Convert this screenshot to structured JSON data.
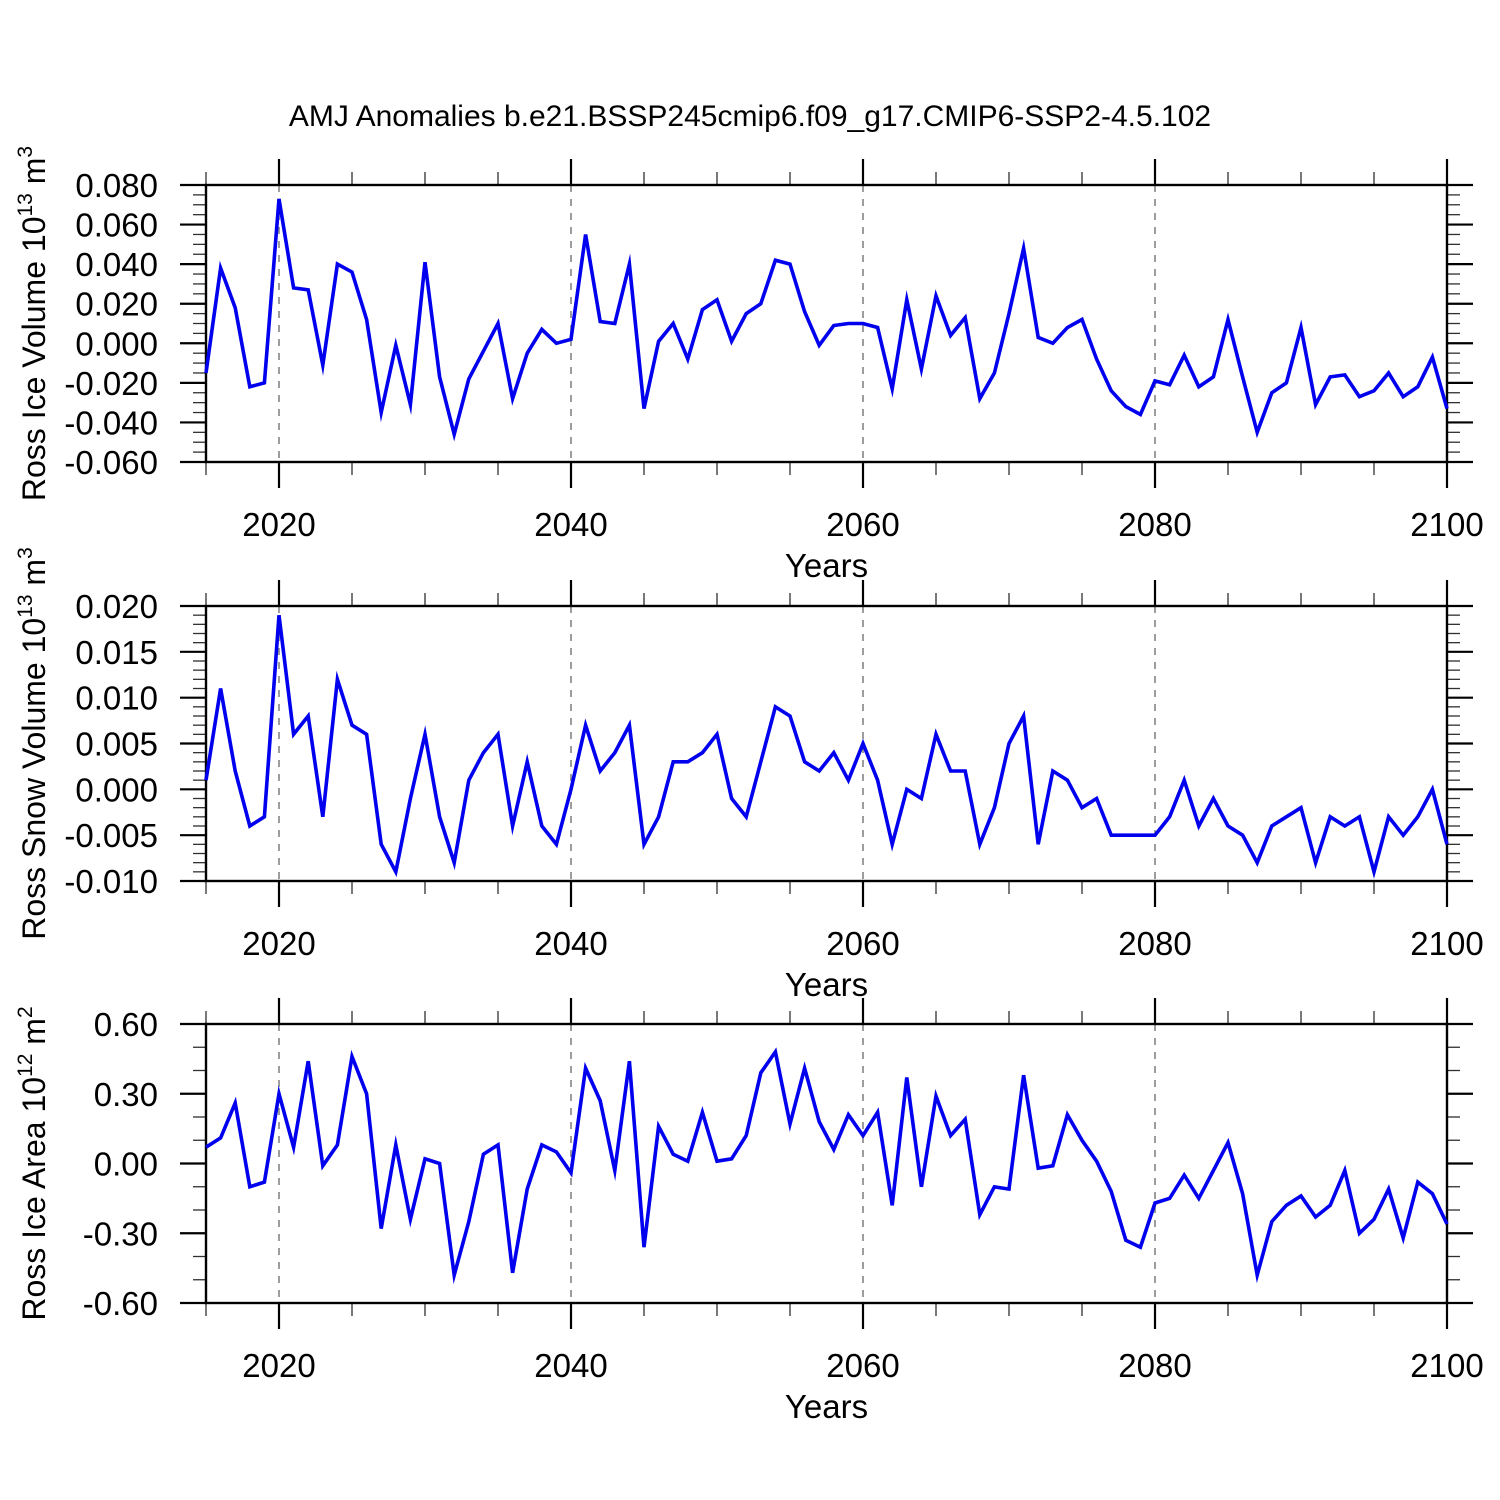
{
  "title": "AMJ Anomalies b.e21.BSSP245cmip6.f09_g17.CMIP6-SSP2-4.5.102",
  "colors": {
    "line": "#0000EE",
    "grid": "#7d7d7d",
    "axis": "#000000"
  },
  "chart_data": {
    "type": "line",
    "title": "AMJ Anomalies b.e21.BSSP245cmip6.f09_g17.CMIP6-SSP2-4.5.102",
    "x_range": [
      2015,
      2100
    ],
    "x_ticks": [
      2020,
      2040,
      2060,
      2080,
      2100
    ],
    "x_tick_labels": [
      "2020",
      "2040",
      "2060",
      "2080",
      "2100"
    ],
    "x_minor_step": 5,
    "grid_x": [
      2020,
      2040,
      2060,
      2080
    ],
    "xlabel": "Years",
    "legend": "none",
    "grid": "vertical-dashed",
    "x": [
      2015,
      2016,
      2017,
      2018,
      2019,
      2020,
      2021,
      2022,
      2023,
      2024,
      2025,
      2026,
      2027,
      2028,
      2029,
      2030,
      2031,
      2032,
      2033,
      2034,
      2035,
      2036,
      2037,
      2038,
      2039,
      2040,
      2041,
      2042,
      2043,
      2044,
      2045,
      2046,
      2047,
      2048,
      2049,
      2050,
      2051,
      2052,
      2053,
      2054,
      2055,
      2056,
      2057,
      2058,
      2059,
      2060,
      2061,
      2062,
      2063,
      2064,
      2065,
      2066,
      2067,
      2068,
      2069,
      2070,
      2071,
      2072,
      2073,
      2074,
      2075,
      2076,
      2077,
      2078,
      2079,
      2080,
      2081,
      2082,
      2083,
      2084,
      2085,
      2086,
      2087,
      2088,
      2089,
      2090,
      2091,
      2092,
      2093,
      2094,
      2095,
      2096,
      2097,
      2098,
      2099,
      2100
    ],
    "panels": [
      {
        "id": "ross-ice-volume",
        "ylabel_text": "Ross Ice Volume 10^13 m^3",
        "ylabel_parts": [
          {
            "t": "Ross Ice Volume 10"
          },
          {
            "t": "13",
            "sup": true
          },
          {
            "t": " m"
          },
          {
            "t": "3",
            "sup": true
          }
        ],
        "ylim": [
          -0.06,
          0.08
        ],
        "ytick_labels": [
          "0.080",
          "0.060",
          "0.040",
          "0.020",
          "0.000",
          "-0.020",
          "-0.040",
          "-0.060"
        ],
        "ytick_step": 0.02,
        "yminor_step": 0.005,
        "xlabel": "Years",
        "values": [
          -0.015,
          0.038,
          0.018,
          -0.022,
          -0.02,
          0.073,
          0.028,
          0.027,
          -0.011,
          0.04,
          0.036,
          0.012,
          -0.035,
          -0.001,
          -0.031,
          0.041,
          -0.017,
          -0.046,
          -0.018,
          -0.004,
          0.01,
          -0.028,
          -0.005,
          0.007,
          0.0,
          0.002,
          0.055,
          0.011,
          0.01,
          0.04,
          -0.033,
          0.001,
          0.01,
          -0.008,
          0.017,
          0.022,
          0.001,
          0.015,
          0.02,
          0.042,
          0.04,
          0.016,
          -0.001,
          0.009,
          0.01,
          0.01,
          0.008,
          -0.023,
          0.022,
          -0.013,
          0.024,
          0.004,
          0.013,
          -0.028,
          -0.015,
          0.015,
          0.048,
          0.003,
          0.0,
          0.008,
          0.012,
          -0.008,
          -0.024,
          -0.032,
          -0.036,
          -0.019,
          -0.021,
          -0.006,
          -0.022,
          -0.017,
          0.012,
          -0.017,
          -0.045,
          -0.025,
          -0.02,
          0.008,
          -0.031,
          -0.017,
          -0.016,
          -0.027,
          -0.024,
          -0.015,
          -0.027,
          -0.022,
          -0.007,
          -0.033
        ]
      },
      {
        "id": "ross-snow-volume",
        "ylabel_text": "Ross Snow Volume 10^13 m^3",
        "ylabel_parts": [
          {
            "t": "Ross Snow Volume 10"
          },
          {
            "t": "13",
            "sup": true
          },
          {
            "t": " m"
          },
          {
            "t": "3",
            "sup": true
          }
        ],
        "ylim": [
          -0.01,
          0.02
        ],
        "ytick_labels": [
          "0.020",
          "0.015",
          "0.010",
          "0.005",
          "0.000",
          "-0.005",
          "-0.010"
        ],
        "ytick_step": 0.005,
        "yminor_step": 0.001,
        "xlabel": "Years",
        "values": [
          0.001,
          0.011,
          0.002,
          -0.004,
          -0.003,
          0.019,
          0.006,
          0.008,
          -0.003,
          0.012,
          0.007,
          0.006,
          -0.006,
          -0.009,
          -0.001,
          0.006,
          -0.003,
          -0.008,
          0.001,
          0.004,
          0.006,
          -0.004,
          0.003,
          -0.004,
          -0.006,
          0.0,
          0.007,
          0.002,
          0.004,
          0.007,
          -0.006,
          -0.003,
          0.003,
          0.003,
          0.004,
          0.006,
          -0.001,
          -0.003,
          0.003,
          0.009,
          0.008,
          0.003,
          0.002,
          0.004,
          0.001,
          0.005,
          0.001,
          -0.006,
          0.0,
          -0.001,
          0.006,
          0.002,
          0.002,
          -0.006,
          -0.002,
          0.005,
          0.008,
          -0.006,
          0.002,
          0.001,
          -0.002,
          -0.001,
          -0.005,
          -0.005,
          -0.005,
          -0.005,
          -0.003,
          0.001,
          -0.004,
          -0.001,
          -0.004,
          -0.005,
          -0.008,
          -0.004,
          -0.003,
          -0.002,
          -0.008,
          -0.003,
          -0.004,
          -0.003,
          -0.009,
          -0.003,
          -0.005,
          -0.003,
          0.0,
          -0.006
        ]
      },
      {
        "id": "ross-ice-area",
        "ylabel_text": "Ross Ice Area 10^12 m^2",
        "ylabel_parts": [
          {
            "t": "Ross Ice Area 10"
          },
          {
            "t": "12",
            "sup": true
          },
          {
            "t": " m"
          },
          {
            "t": "2",
            "sup": true
          }
        ],
        "ylim": [
          -0.6,
          0.6
        ],
        "ytick_labels": [
          "0.60",
          "0.30",
          "0.00",
          "-0.30",
          "-0.60"
        ],
        "ytick_step": 0.3,
        "yminor_step": 0.1,
        "xlabel": "Years",
        "values": [
          0.07,
          0.11,
          0.26,
          -0.1,
          -0.08,
          0.3,
          0.07,
          0.44,
          -0.01,
          0.08,
          0.46,
          0.3,
          -0.28,
          0.08,
          -0.24,
          0.02,
          0.0,
          -0.48,
          -0.25,
          0.04,
          0.08,
          -0.47,
          -0.11,
          0.08,
          0.05,
          -0.04,
          0.41,
          0.27,
          -0.03,
          0.44,
          -0.36,
          0.16,
          0.04,
          0.01,
          0.22,
          0.01,
          0.02,
          0.12,
          0.39,
          0.48,
          0.17,
          0.41,
          0.18,
          0.06,
          0.21,
          0.12,
          0.22,
          -0.18,
          0.37,
          -0.1,
          0.29,
          0.12,
          0.19,
          -0.22,
          -0.1,
          -0.11,
          0.38,
          -0.02,
          -0.01,
          0.21,
          0.1,
          0.01,
          -0.12,
          -0.33,
          -0.36,
          -0.17,
          -0.15,
          -0.05,
          -0.15,
          -0.03,
          0.09,
          -0.13,
          -0.48,
          -0.25,
          -0.18,
          -0.14,
          -0.23,
          -0.18,
          -0.03,
          -0.3,
          -0.24,
          -0.11,
          -0.32,
          -0.08,
          -0.13,
          -0.26
        ]
      }
    ]
  }
}
